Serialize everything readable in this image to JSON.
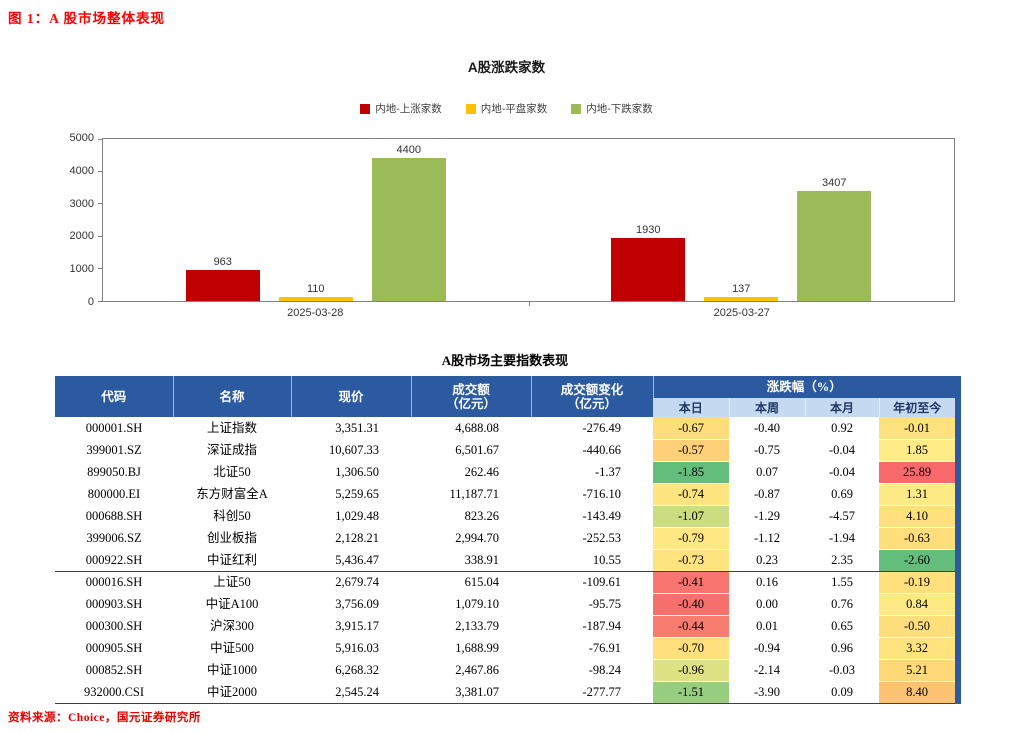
{
  "page": {
    "figure_title": "图 1：A 股市场整体表现",
    "source_note": "资料来源：Choice，国元证券研究所"
  },
  "colors": {
    "accent_header_blue": "#2b5aa0",
    "subheader_blue": "#c5d9f1",
    "scale_red": "#f8696b",
    "scale_yellow": "#ffeb84",
    "scale_green": "#63be7b"
  },
  "chart_data": [
    {
      "type": "bar",
      "title": "A股涨跌家数",
      "categories": [
        "2025-03-28",
        "2025-03-27"
      ],
      "series": [
        {
          "name": "内地-上涨家数",
          "color": "#c00000",
          "values": [
            963,
            1930
          ]
        },
        {
          "name": "内地-平盘家数",
          "color": "#ffc000",
          "values": [
            110,
            137
          ]
        },
        {
          "name": "内地-下跌家数",
          "color": "#9bbb59",
          "values": [
            4400,
            3407
          ]
        }
      ],
      "ylim": [
        0,
        5000
      ],
      "y_ticks": [
        0,
        1000,
        2000,
        3000,
        4000,
        5000
      ],
      "legend_position": "top",
      "grid": false,
      "data_labels": true
    },
    {
      "type": "table",
      "title": "A股市场主要指数表现",
      "column_headers": [
        "代码",
        "名称",
        "现价",
        "成交额（亿元）",
        "成交额变化（亿元）",
        "涨跌幅（%）-本日",
        "涨跌幅（%）-本周",
        "涨跌幅（%）-本月",
        "涨跌幅（%）-年初至今"
      ],
      "rows": [
        [
          "000001.SH",
          "上证指数",
          "3,351.31",
          "4,688.08",
          "-276.49",
          "-0.67",
          "-0.40",
          "0.92",
          "-0.01"
        ],
        [
          "399001.SZ",
          "深证成指",
          "10,607.33",
          "6,501.67",
          "-440.66",
          "-0.57",
          "-0.75",
          "-0.04",
          "1.85"
        ],
        [
          "899050.BJ",
          "北证50",
          "1,306.50",
          "262.46",
          "-1.37",
          "-1.85",
          "0.07",
          "-0.04",
          "25.89"
        ],
        [
          "800000.EI",
          "东方财富全A",
          "5,259.65",
          "11,187.71",
          "-716.10",
          "-0.74",
          "-0.87",
          "0.69",
          "1.31"
        ],
        [
          "000688.SH",
          "科创50",
          "1,029.48",
          "823.26",
          "-143.49",
          "-1.07",
          "-1.29",
          "-4.57",
          "4.10"
        ],
        [
          "399006.SZ",
          "创业板指",
          "2,128.21",
          "2,994.70",
          "-252.53",
          "-0.79",
          "-1.12",
          "-1.94",
          "-0.63"
        ],
        [
          "000922.SH",
          "中证红利",
          "5,436.47",
          "338.91",
          "10.55",
          "-0.73",
          "0.23",
          "2.35",
          "-2.60"
        ],
        [
          "000016.SH",
          "上证50",
          "2,679.74",
          "615.04",
          "-109.61",
          "-0.41",
          "0.16",
          "1.55",
          "-0.19"
        ],
        [
          "000903.SH",
          "中证A100",
          "3,756.09",
          "1,079.10",
          "-95.75",
          "-0.40",
          "0.00",
          "0.76",
          "0.84"
        ],
        [
          "000300.SH",
          "沪深300",
          "3,915.17",
          "2,133.79",
          "-187.94",
          "-0.44",
          "0.01",
          "0.65",
          "-0.50"
        ],
        [
          "000905.SH",
          "中证500",
          "5,916.03",
          "1,688.99",
          "-76.91",
          "-0.70",
          "-0.94",
          "0.96",
          "3.32"
        ],
        [
          "000852.SH",
          "中证1000",
          "6,268.32",
          "2,467.86",
          "-98.24",
          "-0.96",
          "-2.14",
          "-0.03",
          "5.21"
        ],
        [
          "932000.CSI",
          "中证2000",
          "2,545.24",
          "3,381.07",
          "-277.77",
          "-1.51",
          "-3.90",
          "0.09",
          "8.40"
        ]
      ]
    }
  ],
  "table": {
    "title": "A股市场主要指数表现",
    "headers": {
      "code": "代码",
      "name": "名称",
      "price": "现价",
      "turnover": "成交额\n（亿元）",
      "turnover_change": "成交额变化\n（亿元）",
      "change_group": "涨跌幅（%）",
      "sub": [
        "本日",
        "本周",
        "本月",
        "年初至今"
      ]
    },
    "rows": [
      {
        "code": "000001.SH",
        "name": "上证指数",
        "price": "3,351.31",
        "turnover": "4,688.08",
        "turnover_change": "-276.49",
        "day": "-0.67",
        "week": "-0.40",
        "month": "0.92",
        "ytd": "-0.01",
        "day_bg": "#ffdd7a",
        "ytd_bg": "#ffe27e"
      },
      {
        "code": "399001.SZ",
        "name": "深证成指",
        "price": "10,607.33",
        "turnover": "6,501.67",
        "turnover_change": "-440.66",
        "day": "-0.57",
        "week": "-0.75",
        "month": "-0.04",
        "ytd": "1.85",
        "day_bg": "#ffd077",
        "ytd_bg": "#ffec87"
      },
      {
        "code": "899050.BJ",
        "name": "北证50",
        "price": "1,306.50",
        "turnover": "262.46",
        "turnover_change": "-1.37",
        "day": "-1.85",
        "week": "0.07",
        "month": "-0.04",
        "ytd": "25.89",
        "day_bg": "#63be7b",
        "ytd_bg": "#f8696b"
      },
      {
        "code": "800000.EI",
        "name": "东方财富全A",
        "price": "5,259.65",
        "turnover": "11,187.71",
        "turnover_change": "-716.10",
        "day": "-0.74",
        "week": "-0.87",
        "month": "0.69",
        "ytd": "1.31",
        "day_bg": "#ffe480",
        "ytd_bg": "#ffeb86"
      },
      {
        "code": "000688.SH",
        "name": "科创50",
        "price": "1,029.48",
        "turnover": "823.26",
        "turnover_change": "-143.49",
        "day": "-1.07",
        "week": "-1.29",
        "month": "-4.57",
        "ytd": "4.10",
        "day_bg": "#cbdc81",
        "ytd_bg": "#ffe07c"
      },
      {
        "code": "399006.SZ",
        "name": "创业板指",
        "price": "2,128.21",
        "turnover": "2,994.70",
        "turnover_change": "-252.53",
        "day": "-0.79",
        "week": "-1.12",
        "month": "-1.94",
        "ytd": "-0.63",
        "day_bg": "#ffe883",
        "ytd_bg": "#ffde7b"
      },
      {
        "code": "000922.SH",
        "name": "中证红利",
        "price": "5,436.47",
        "turnover": "338.91",
        "turnover_change": "10.55",
        "day": "-0.73",
        "week": "0.23",
        "month": "2.35",
        "ytd": "-2.60",
        "day_bg": "#ffe37f",
        "ytd_bg": "#63be7b",
        "group_end": true
      },
      {
        "code": "000016.SH",
        "name": "上证50",
        "price": "2,679.74",
        "turnover": "615.04",
        "turnover_change": "-109.61",
        "day": "-0.41",
        "week": "0.16",
        "month": "1.55",
        "ytd": "-0.19",
        "day_bg": "#f8746e",
        "ytd_bg": "#ffe07d"
      },
      {
        "code": "000903.SH",
        "name": "中证A100",
        "price": "3,756.09",
        "turnover": "1,079.10",
        "turnover_change": "-95.75",
        "day": "-0.40",
        "week": "0.00",
        "month": "0.76",
        "ytd": "0.84",
        "day_bg": "#f8706c",
        "ytd_bg": "#ffe984"
      },
      {
        "code": "000300.SH",
        "name": "沪深300",
        "price": "3,915.17",
        "turnover": "2,133.79",
        "turnover_change": "-187.94",
        "day": "-0.44",
        "week": "0.01",
        "month": "0.65",
        "ytd": "-0.50",
        "day_bg": "#f87d70",
        "ytd_bg": "#ffdf7c"
      },
      {
        "code": "000905.SH",
        "name": "中证500",
        "price": "5,916.03",
        "turnover": "1,688.99",
        "turnover_change": "-76.91",
        "day": "-0.70",
        "week": "-0.94",
        "month": "0.96",
        "ytd": "3.32",
        "day_bg": "#ffe07d",
        "ytd_bg": "#ffe37f"
      },
      {
        "code": "000852.SH",
        "name": "中证1000",
        "price": "6,268.32",
        "turnover": "2,467.86",
        "turnover_change": "-98.24",
        "day": "-0.96",
        "week": "-2.14",
        "month": "-0.03",
        "ytd": "5.21",
        "day_bg": "#dfe284",
        "ytd_bg": "#ffd978"
      },
      {
        "code": "932000.CSI",
        "name": "中证2000",
        "price": "2,545.24",
        "turnover": "3,381.07",
        "turnover_change": "-277.77",
        "day": "-1.51",
        "week": "-3.90",
        "month": "0.09",
        "ytd": "8.40",
        "day_bg": "#96cd7f",
        "ytd_bg": "#fcc374"
      }
    ]
  }
}
